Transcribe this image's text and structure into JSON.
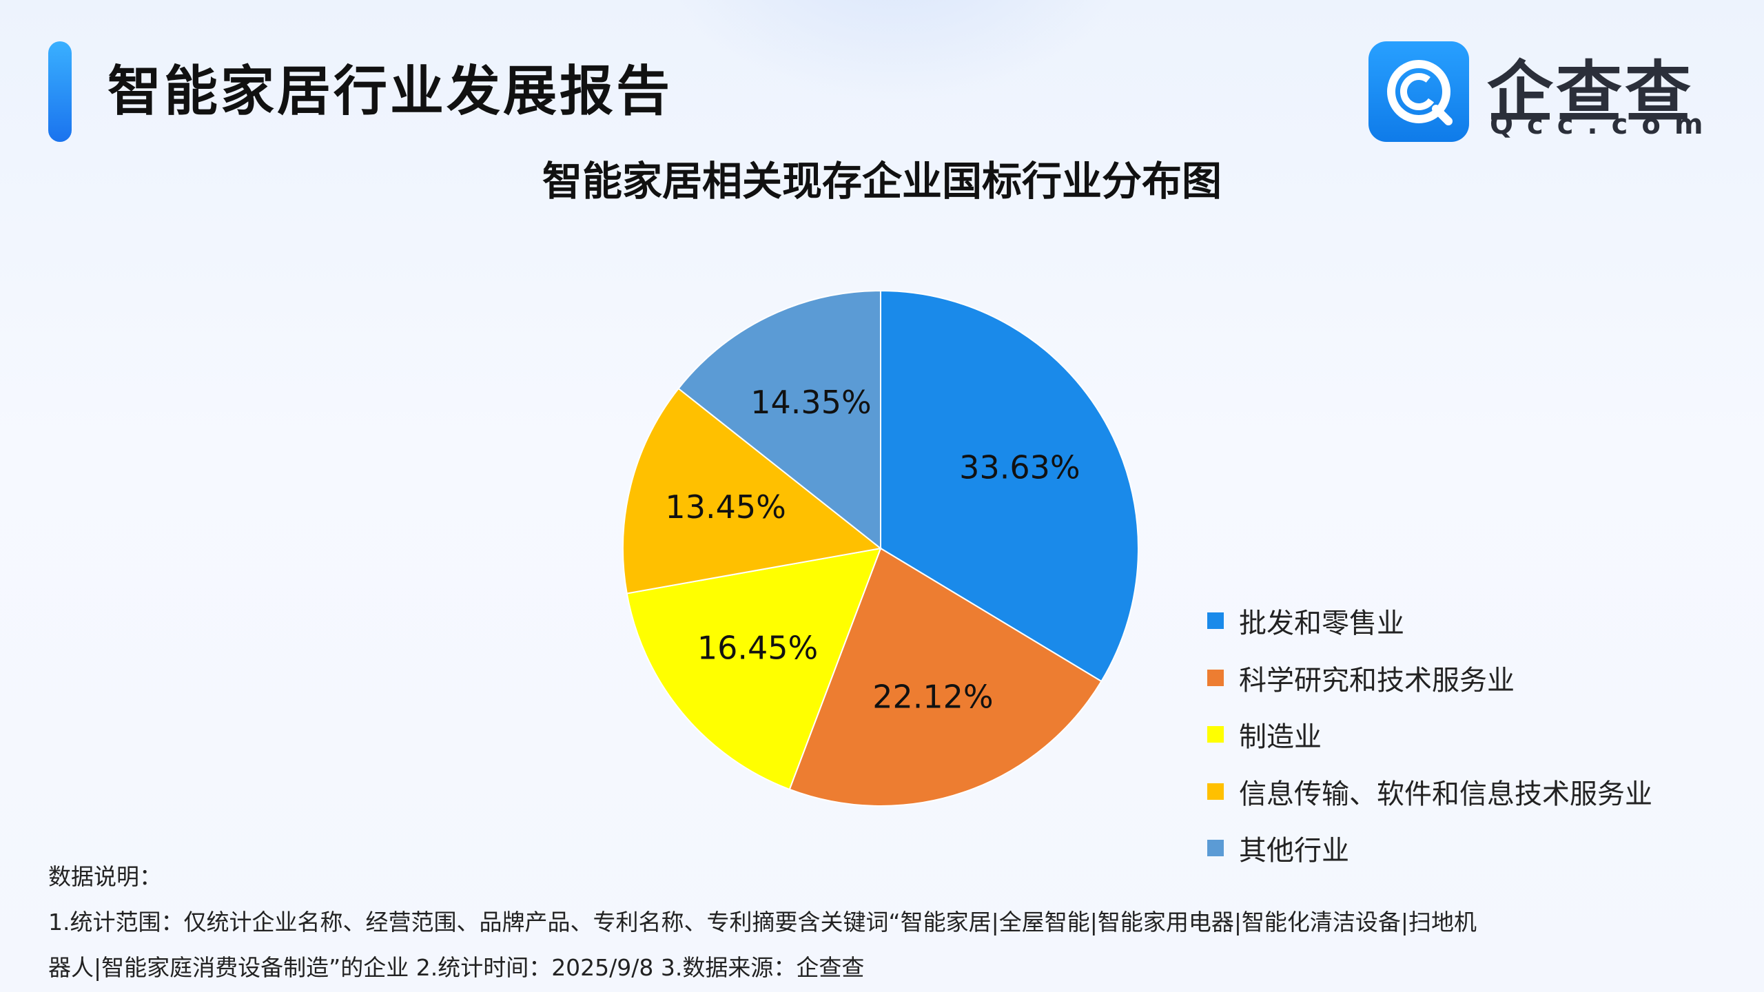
{
  "header": {
    "title": "智能家居行业发展报告",
    "logo_name": "企查查",
    "logo_domain": "Qcc.com"
  },
  "chart_data": {
    "type": "pie",
    "title": "智能家居相关现存企业国标行业分布图",
    "categories": [
      "批发和零售业",
      "科学研究和技术服务业",
      "制造业",
      "信息传输、软件和信息技术服务业",
      "其他行业"
    ],
    "values": [
      33.63,
      22.12,
      16.45,
      13.45,
      14.35
    ],
    "value_labels": [
      "33.63%",
      "22.12%",
      "16.45%",
      "13.45%",
      "14.35%"
    ],
    "colors": [
      "#1a8aea",
      "#ed7d31",
      "#ffff00",
      "#ffc000",
      "#5b9bd5"
    ],
    "legend_position": "right-bottom"
  },
  "notes": {
    "heading": "数据说明：",
    "line1": "1.统计范围：仅统计企业名称、经营范围、品牌产品、专利名称、专利摘要含关键词“智能家居|全屋智能|智能家用电器|智能化清洁设备|扫地机",
    "line2": "器人|智能家庭消费设备制造”的企业  2.统计时间：2025/9/8  3.数据来源：企查查"
  }
}
